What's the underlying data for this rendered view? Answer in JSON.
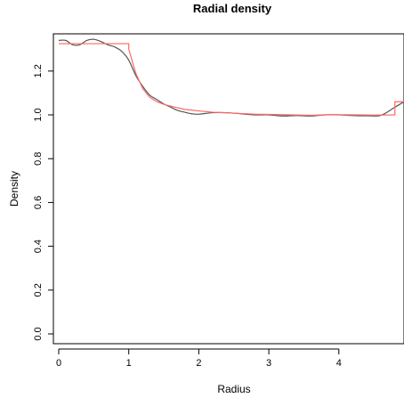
{
  "chart_data": {
    "type": "line",
    "title": "Radial density",
    "xlabel": "Radius",
    "ylabel": "Density",
    "xlim": [
      0,
      4.93
    ],
    "ylim": [
      0,
      1.37
    ],
    "x_ticks": [
      "0",
      "1",
      "2",
      "3",
      "4"
    ],
    "x_tick_values": [
      0,
      1,
      2,
      3,
      4
    ],
    "y_ticks": [
      "0.0",
      "0.2",
      "0.4",
      "0.6",
      "0.8",
      "1.0",
      "1.2"
    ],
    "y_tick_values": [
      0.0,
      0.2,
      0.4,
      0.6,
      0.8,
      1.0,
      1.2
    ],
    "grid": false,
    "series": [
      {
        "color": "#555555",
        "style": "smooth",
        "x": [
          0,
          0.1,
          0.2,
          0.3,
          0.4,
          0.5,
          0.6,
          0.7,
          0.8,
          0.9,
          1.0,
          1.1,
          1.2,
          1.3,
          1.4,
          1.5,
          1.6,
          1.7,
          1.8,
          1.9,
          2.0,
          2.2,
          2.4,
          2.6,
          2.8,
          3.0,
          3.2,
          3.4,
          3.6,
          3.8,
          4.0,
          4.2,
          4.4,
          4.6,
          4.8,
          4.93
        ],
        "y": [
          1.34,
          1.34,
          1.32,
          1.32,
          1.34,
          1.345,
          1.335,
          1.32,
          1.31,
          1.29,
          1.25,
          1.18,
          1.13,
          1.09,
          1.07,
          1.05,
          1.035,
          1.02,
          1.012,
          1.005,
          1.003,
          1.01,
          1.01,
          1.005,
          1.0,
          1.0,
          0.995,
          0.997,
          0.995,
          1.0,
          1.0,
          0.997,
          0.996,
          0.998,
          1.035,
          1.06
        ]
      },
      {
        "color": "#ff6666",
        "style": "step",
        "x": [
          0,
          1.0,
          1.0,
          1.1,
          1.2,
          1.3,
          1.4,
          1.5,
          1.6,
          1.8,
          2.0,
          2.2,
          2.5,
          2.8,
          3.0,
          3.3,
          3.6,
          3.9,
          4.2,
          4.5,
          4.8,
          4.8,
          4.93
        ],
        "y": [
          1.325,
          1.325,
          1.3,
          1.19,
          1.12,
          1.08,
          1.06,
          1.048,
          1.04,
          1.025,
          1.018,
          1.012,
          1.008,
          1.003,
          1.002,
          1.0,
          0.998,
          1.001,
          1.0,
          0.999,
          1.0,
          1.06,
          1.06
        ]
      }
    ]
  }
}
